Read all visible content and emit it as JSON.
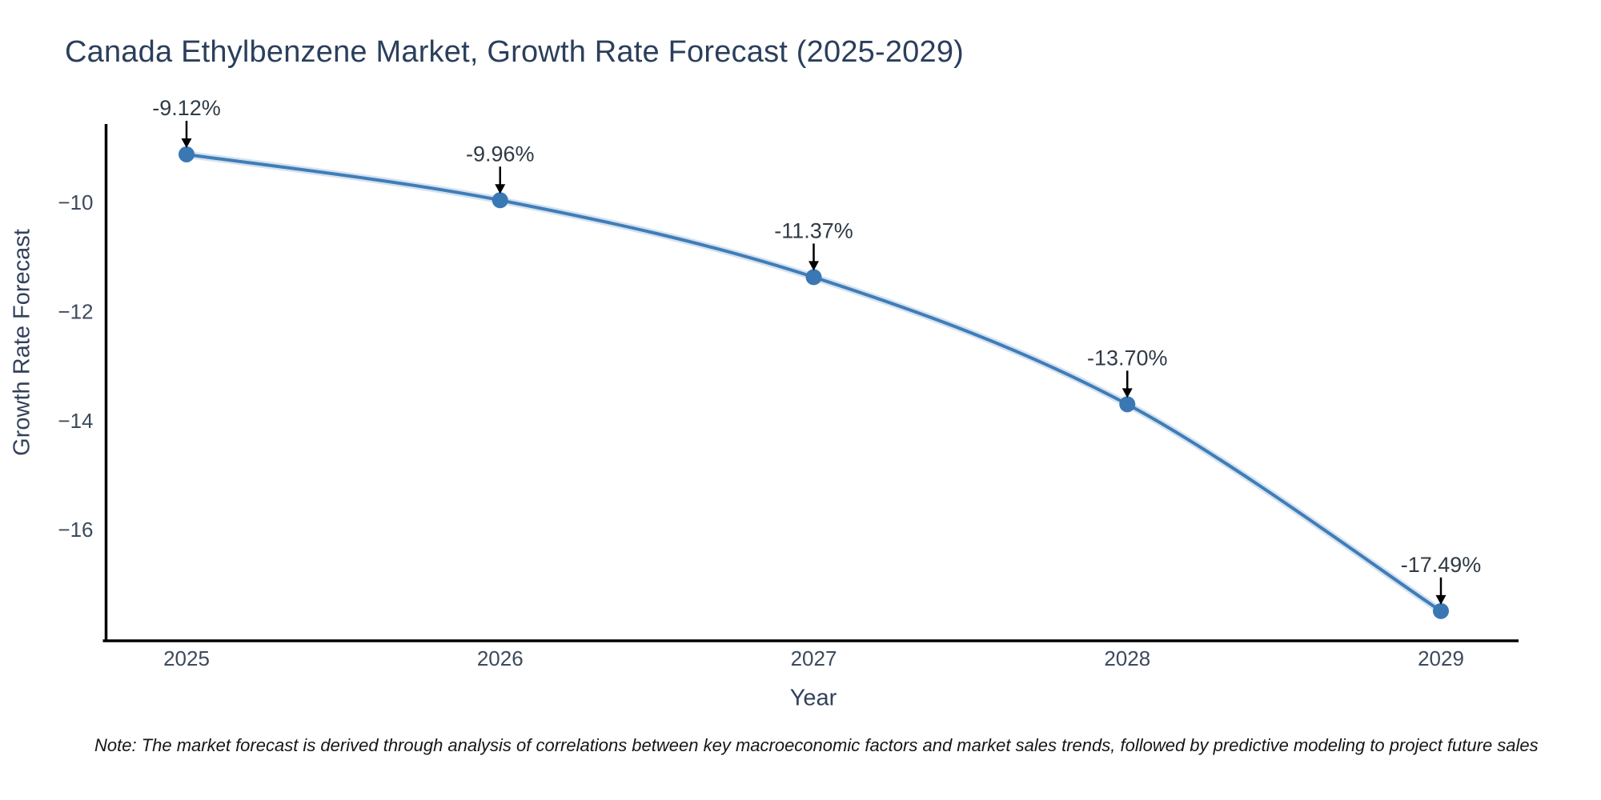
{
  "page": {
    "title": "Canada Ethylbenzene Market, Growth Rate Forecast (2025-2029)",
    "note": "Note: The market forecast is derived through analysis of correlations between key macroeconomic factors and market sales trends, followed by predictive modeling to project future sales"
  },
  "chart_data": {
    "type": "line",
    "title": "Canada Ethylbenzene Market, Growth Rate Forecast (2025-2029)",
    "xlabel": "Year",
    "ylabel": "Growth Rate Forecast",
    "x": [
      2025,
      2026,
      2027,
      2028,
      2029
    ],
    "series": [
      {
        "name": "Growth Rate Forecast",
        "values": [
          -9.12,
          -9.96,
          -11.37,
          -13.7,
          -17.49
        ],
        "point_labels": [
          "-9.12%",
          "-9.96%",
          "-11.37%",
          "-13.70%",
          "-17.49%"
        ]
      }
    ],
    "y_ticks": [
      -10,
      -12,
      -14,
      -16
    ],
    "ylim": [
      -18.0,
      -8.5
    ],
    "grid": false,
    "legend_position": "none",
    "curve": "spline",
    "colors": {
      "line": "#3f7db8",
      "line_halo": "rgba(63,125,184,0.22)",
      "marker": "#3a78b4",
      "axis": "#000000",
      "tick_text": "#3c4a5c",
      "title_text": "#2b3f5c",
      "annotation_text": "#2f3a45",
      "arrow": "#000000"
    }
  }
}
